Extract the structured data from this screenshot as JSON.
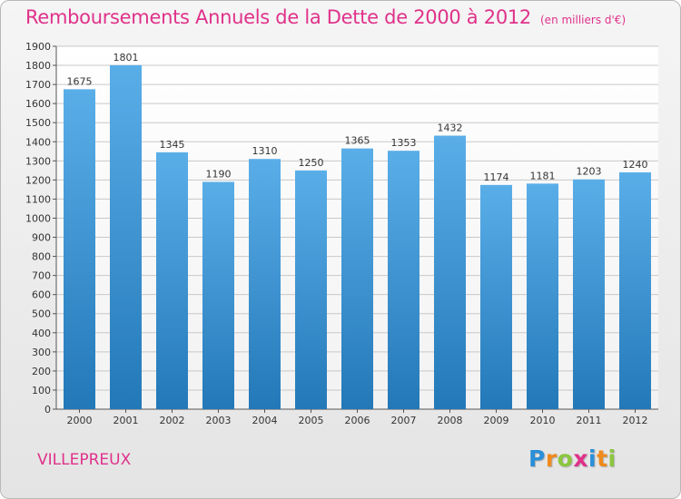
{
  "header": {
    "title": "Remboursements Annuels de la Dette de 2000 à 2012",
    "unit_note": "(en milliers d'€)"
  },
  "footer": {
    "city": "VILLEPREUX",
    "logo_letters": [
      "P",
      "r",
      "o",
      "x",
      "i",
      "t",
      "i"
    ],
    "logo_colors": [
      "#2a8fd8",
      "#f08a1c",
      "#8cc63f",
      "#e0318a",
      "#2a8fd8",
      "#f08a1c",
      "#8cc63f"
    ]
  },
  "chart_data": {
    "type": "bar",
    "title": "Remboursements Annuels de la Dette de 2000 à 2012",
    "subtitle": "(en milliers d'€)",
    "categories": [
      "2000",
      "2001",
      "2002",
      "2003",
      "2004",
      "2005",
      "2006",
      "2007",
      "2008",
      "2009",
      "2010",
      "2011",
      "2012"
    ],
    "values": [
      1675,
      1801,
      1345,
      1190,
      1310,
      1250,
      1365,
      1353,
      1432,
      1174,
      1181,
      1203,
      1240
    ],
    "ylim": [
      0,
      1900
    ],
    "yticks": [
      0,
      100,
      200,
      300,
      400,
      500,
      600,
      700,
      800,
      900,
      1000,
      1100,
      1200,
      1300,
      1400,
      1500,
      1600,
      1700,
      1800,
      1900
    ],
    "grid": true,
    "colors": {
      "bar_top": "#5aaee8",
      "bar_bottom": "#2378b8",
      "grid": "#c8c8c8",
      "axis": "#555555",
      "text": "#333333"
    }
  }
}
